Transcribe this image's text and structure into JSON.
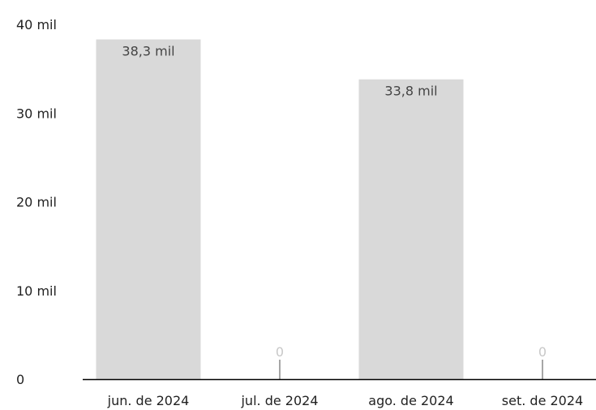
{
  "chart_data": {
    "type": "bar",
    "categories": [
      "jun. de 2024",
      "jul. de 2024",
      "ago. de 2024",
      "set. de 2024"
    ],
    "values": [
      38300,
      0,
      33800,
      0
    ],
    "value_labels": [
      "38,3 mil",
      "0",
      "33,8 mil",
      "0"
    ],
    "ylim": [
      0,
      40000
    ],
    "y_ticks": [
      0,
      10000,
      20000,
      30000,
      40000
    ],
    "y_tick_labels": [
      "0",
      "10 mil",
      "20 mil",
      "30 mil",
      "40 mil"
    ],
    "grid": false,
    "legend": "none",
    "colors": {
      "bar": "#d9d9d9",
      "zero_marker": "#a6a6a6",
      "label_on_bar": "#444444",
      "label_zero": "#c8c8c8",
      "axis": "#000000"
    }
  }
}
